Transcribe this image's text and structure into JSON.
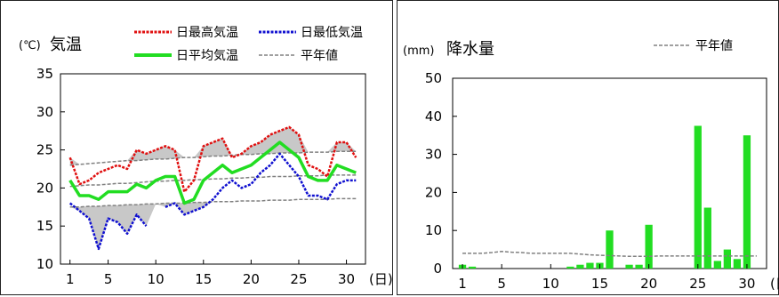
{
  "chart_data": [
    {
      "type": "line",
      "title": "気温",
      "unit_label": "(℃)",
      "x_unit": "(日)",
      "ylim": [
        10,
        35
      ],
      "yticks": [
        "35",
        "30",
        "25",
        "20",
        "15",
        "10"
      ],
      "xticks": [
        "1",
        "5",
        "10",
        "15",
        "20",
        "25",
        "30"
      ],
      "x": [
        1,
        2,
        3,
        4,
        5,
        6,
        7,
        8,
        9,
        10,
        11,
        12,
        13,
        14,
        15,
        16,
        17,
        18,
        19,
        20,
        21,
        22,
        23,
        24,
        25,
        26,
        27,
        28,
        29,
        30,
        31
      ],
      "series": [
        {
          "name": "日最高気温",
          "color": "#e01010",
          "style": "dotted",
          "values": [
            24,
            20.5,
            21,
            22,
            22.5,
            23,
            22.5,
            25,
            24.5,
            25,
            25.5,
            25,
            19.5,
            21,
            25.5,
            26,
            26.5,
            24,
            24.5,
            25.5,
            26,
            27,
            27.5,
            28,
            27,
            23,
            22.5,
            21.5,
            26,
            26,
            24
          ]
        },
        {
          "name": "日最低気温",
          "color": "#1010d0",
          "style": "dotted",
          "values": [
            18,
            17,
            16,
            12,
            16,
            15.5,
            14,
            16.5,
            15,
            null,
            17.5,
            18,
            16.5,
            17,
            17.5,
            18.5,
            20,
            21,
            20,
            20.5,
            22,
            23,
            24.5,
            23,
            21.5,
            19,
            19,
            18.5,
            20.5,
            21,
            21
          ]
        },
        {
          "name": "日平均気温",
          "color": "#22dd22",
          "style": "solid",
          "values": [
            21,
            19,
            19,
            18.5,
            19.5,
            19.5,
            19.5,
            20.5,
            20,
            21,
            21.5,
            21.5,
            18,
            18.5,
            21,
            22,
            23,
            22,
            22.5,
            23,
            24,
            25,
            26,
            25,
            24,
            21.5,
            21,
            21,
            23,
            22.5,
            22
          ]
        },
        {
          "name": "平年値",
          "color": "#808080",
          "style": "dashed",
          "upper": [
            23,
            23.1,
            23.2,
            23.3,
            23.4,
            23.5,
            23.6,
            23.6,
            23.7,
            23.8,
            23.8,
            23.9,
            24,
            24,
            24.1,
            24.2,
            24.2,
            24.3,
            24.4,
            24.4,
            24.5,
            24.5,
            24.6,
            24.6,
            24.6,
            24.7,
            24.7,
            24.7,
            24.8,
            24.8,
            24.8
          ],
          "middle": [
            20.2,
            20.3,
            20.4,
            20.4,
            20.5,
            20.6,
            20.6,
            20.7,
            20.8,
            20.9,
            20.9,
            21,
            21,
            21.1,
            21.1,
            21.2,
            21.2,
            21.3,
            21.3,
            21.4,
            21.4,
            21.5,
            21.5,
            21.5,
            21.6,
            21.6,
            21.6,
            21.7,
            21.7,
            21.7,
            21.7
          ],
          "lower": [
            17.5,
            17.5,
            17.6,
            17.6,
            17.7,
            17.7,
            17.8,
            17.8,
            17.9,
            17.9,
            18,
            18,
            18,
            18.1,
            18.1,
            18.2,
            18.2,
            18.2,
            18.3,
            18.3,
            18.3,
            18.4,
            18.4,
            18.4,
            18.5,
            18.5,
            18.5,
            18.5,
            18.6,
            18.6,
            18.6
          ]
        }
      ],
      "legend": [
        "日最高気温",
        "日最低気温",
        "日平均気温",
        "平年値"
      ],
      "grid": false
    },
    {
      "type": "bar",
      "title": "降水量",
      "unit_label": "(mm)",
      "x_unit": "(日)",
      "ylim": [
        0,
        50
      ],
      "yticks": [
        "50",
        "40",
        "30",
        "20",
        "10",
        "0"
      ],
      "xticks": [
        "1",
        "5",
        "10",
        "15",
        "20",
        "25",
        "30"
      ],
      "x": [
        1,
        2,
        3,
        4,
        5,
        6,
        7,
        8,
        9,
        10,
        11,
        12,
        13,
        14,
        15,
        16,
        17,
        18,
        19,
        20,
        21,
        22,
        23,
        24,
        25,
        26,
        27,
        28,
        29,
        30,
        31
      ],
      "bar_color": "#22dd22",
      "values": [
        1,
        0.5,
        0,
        0,
        0,
        0,
        0,
        0,
        0,
        0,
        0,
        0.5,
        1,
        1.5,
        1.5,
        10,
        0,
        1,
        1,
        11.5,
        0,
        0,
        0,
        0,
        37.5,
        16,
        2,
        5,
        2.5,
        35,
        0
      ],
      "normal_name": "平年値",
      "normal_color": "#808080",
      "normal": [
        4,
        4,
        4,
        4.2,
        4.5,
        4.3,
        4.2,
        4,
        4,
        4,
        4,
        4,
        3.8,
        3.6,
        3.5,
        3.4,
        3.3,
        3.2,
        3.2,
        3.2,
        3.3,
        3.3,
        3.3,
        3.3,
        3.3,
        3.3,
        3.3,
        3.3,
        3.3,
        3.3,
        3.3
      ],
      "legend": [
        "平年値"
      ],
      "grid": false
    }
  ]
}
